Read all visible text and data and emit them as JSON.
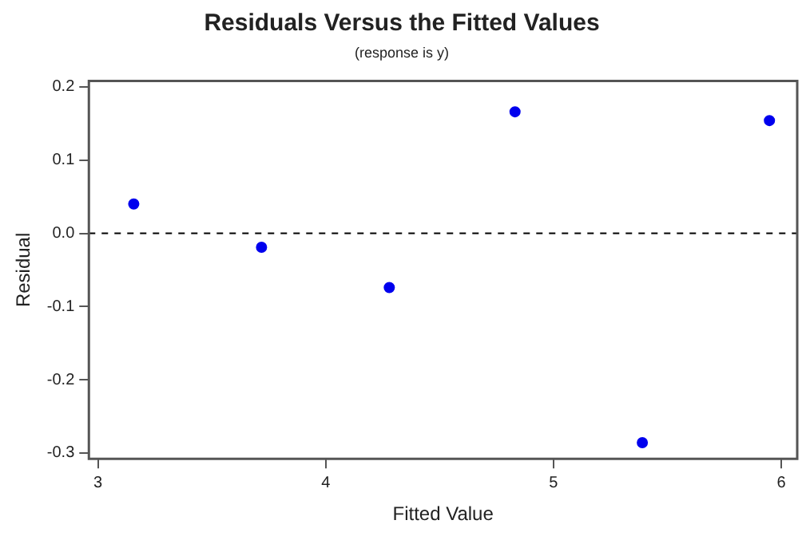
{
  "chart_data": {
    "type": "scatter",
    "title": "Residuals Versus the Fitted Values",
    "subtitle": "(response is y)",
    "xlabel": "Fitted Value",
    "ylabel": "Residual",
    "x": [
      3.157,
      3.718,
      4.279,
      4.831,
      5.39,
      5.948
    ],
    "series": [
      {
        "color": "#0000ee",
        "values": [
          0.04,
          -0.019,
          -0.074,
          0.166,
          -0.286,
          0.154
        ]
      }
    ],
    "xlim": [
      2.96,
      6.07
    ],
    "xticks": [
      3,
      4,
      5,
      6
    ],
    "ylim": [
      -0.308,
      0.208
    ],
    "yticks": [
      {
        "value": -0.3,
        "label": "-0.3"
      },
      {
        "value": -0.2,
        "label": "-0.2"
      },
      {
        "value": -0.1,
        "label": "-0.1"
      },
      {
        "value": 0,
        "label": "0.0"
      },
      {
        "value": 0.1,
        "label": "0.1"
      },
      {
        "value": 0.2,
        "label": "0.2"
      }
    ],
    "ref_lines": [
      {
        "axis": "y",
        "value": 0,
        "line_style": "dashed",
        "color": "#000000"
      }
    ],
    "grid": false,
    "legend": false,
    "marker": "circle"
  }
}
